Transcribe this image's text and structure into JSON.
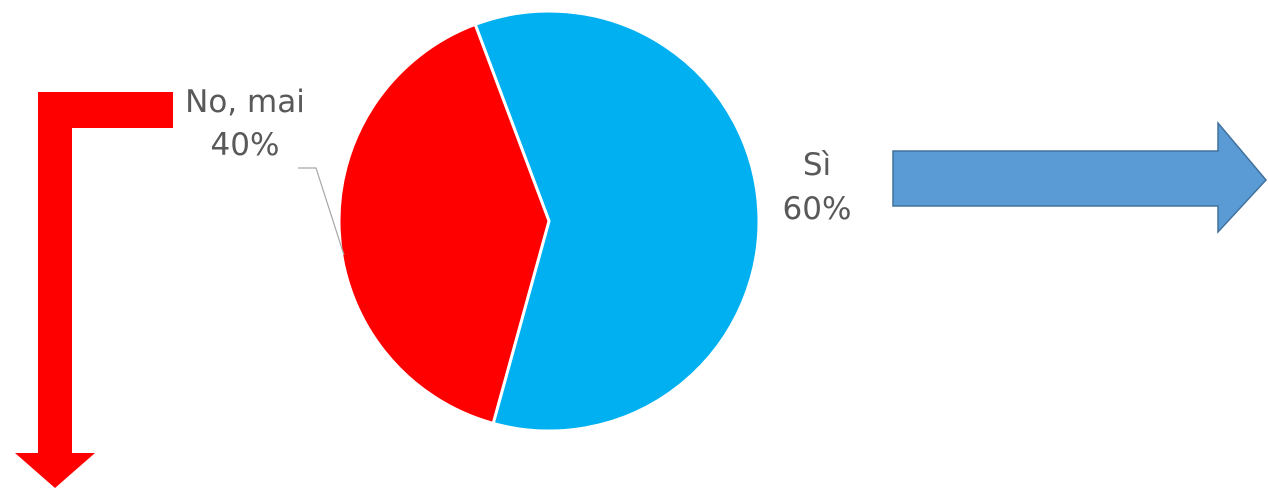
{
  "chart_data": {
    "type": "pie",
    "title": "",
    "slices": [
      {
        "label": "Sì",
        "value": 60,
        "value_label": "60%",
        "color": "#00B0F0"
      },
      {
        "label": "No, mai",
        "value": 40,
        "value_label": "40%",
        "color": "#FF0000"
      }
    ],
    "legend": "none",
    "data_labels": "outside"
  },
  "decorations": {
    "red_arrow": {
      "shape": "bent-arrow-down",
      "color": "#FF0000"
    },
    "blue_arrow": {
      "shape": "block-arrow-right",
      "color": "#5B9BD5",
      "outline": "#41719C"
    }
  }
}
